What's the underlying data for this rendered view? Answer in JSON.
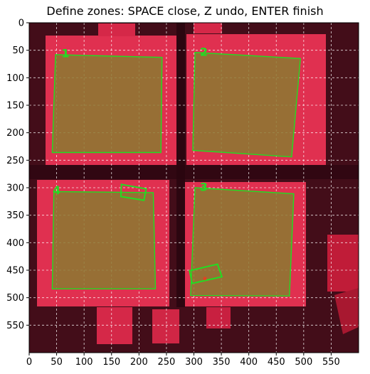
{
  "window": {
    "title": "Define zones: SPACE close, Z undo, ENTER finish"
  },
  "axes": {
    "x_ticks": [
      "0",
      "50",
      "100",
      "150",
      "200",
      "250",
      "300",
      "350",
      "400",
      "450",
      "500",
      "550"
    ],
    "y_ticks": [
      "0",
      "50",
      "100",
      "150",
      "200",
      "250",
      "300",
      "350",
      "400",
      "450",
      "500",
      "550"
    ],
    "x_range": [
      0,
      600
    ],
    "y_range": [
      600,
      0
    ],
    "grid": true
  },
  "colors": {
    "zone_outline": "#22dd22",
    "zone_label": "#22dd22",
    "zone_fill": "#8a7a30",
    "background": "#3a0a14",
    "tray": "#e03050",
    "point": "#dd4422"
  },
  "zones": [
    {
      "label": "1",
      "points": [
        [
          48,
          58
        ],
        [
          242,
          63
        ],
        [
          240,
          236
        ],
        [
          42,
          236
        ]
      ],
      "label_pos": [
        66,
        57
      ]
    },
    {
      "label": "2",
      "points": [
        [
          302,
          54
        ],
        [
          494,
          65
        ],
        [
          478,
          244
        ],
        [
          298,
          232
        ]
      ],
      "label_pos": [
        318,
        54
      ]
    },
    {
      "label": "3",
      "points": [
        [
          302,
          300
        ],
        [
          482,
          311
        ],
        [
          474,
          497
        ],
        [
          294,
          496
        ]
      ],
      "label_pos": [
        318,
        300
      ]
    },
    {
      "label": "4",
      "points": [
        [
          45,
          307
        ],
        [
          226,
          309
        ],
        [
          230,
          484
        ],
        [
          42,
          484
        ]
      ],
      "label_pos": [
        50,
        306
      ]
    }
  ],
  "marked_boxes": [
    {
      "points": [
        [
          168,
          294
        ],
        [
          213,
          302
        ],
        [
          209,
          323
        ],
        [
          167,
          316
        ]
      ]
    },
    {
      "points": [
        [
          292,
          451
        ],
        [
          343,
          439
        ],
        [
          351,
          462
        ],
        [
          297,
          474
        ]
      ]
    }
  ],
  "points": [
    {
      "x": 320,
      "y": 465
    }
  ]
}
